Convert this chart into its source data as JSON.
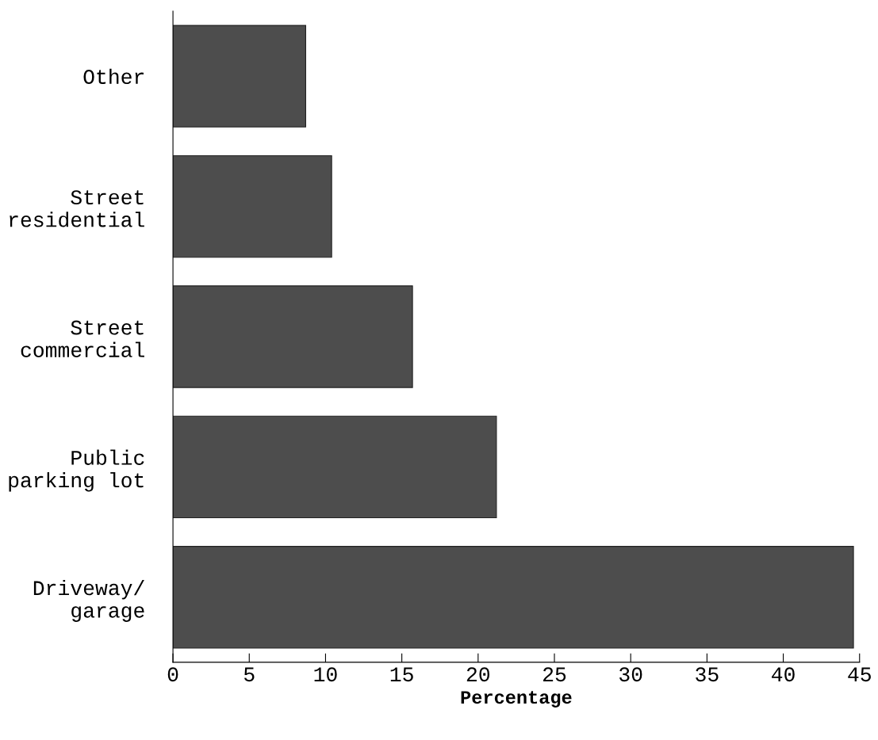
{
  "chart_data": {
    "type": "bar",
    "orientation": "horizontal",
    "xlabel": "Percentage",
    "categories": [
      "Other",
      "Street\nresidential",
      "Street\ncommercial",
      "Public\nparking lot",
      "Driveway/\ngarage"
    ],
    "values": [
      8.7,
      10.4,
      15.7,
      21.2,
      44.6
    ],
    "color": "#4d4d4d",
    "xlim": [
      0,
      45
    ],
    "xticks": [
      0,
      5,
      10,
      15,
      20,
      25,
      30,
      35,
      40,
      45
    ],
    "grid": false,
    "legend": false
  }
}
